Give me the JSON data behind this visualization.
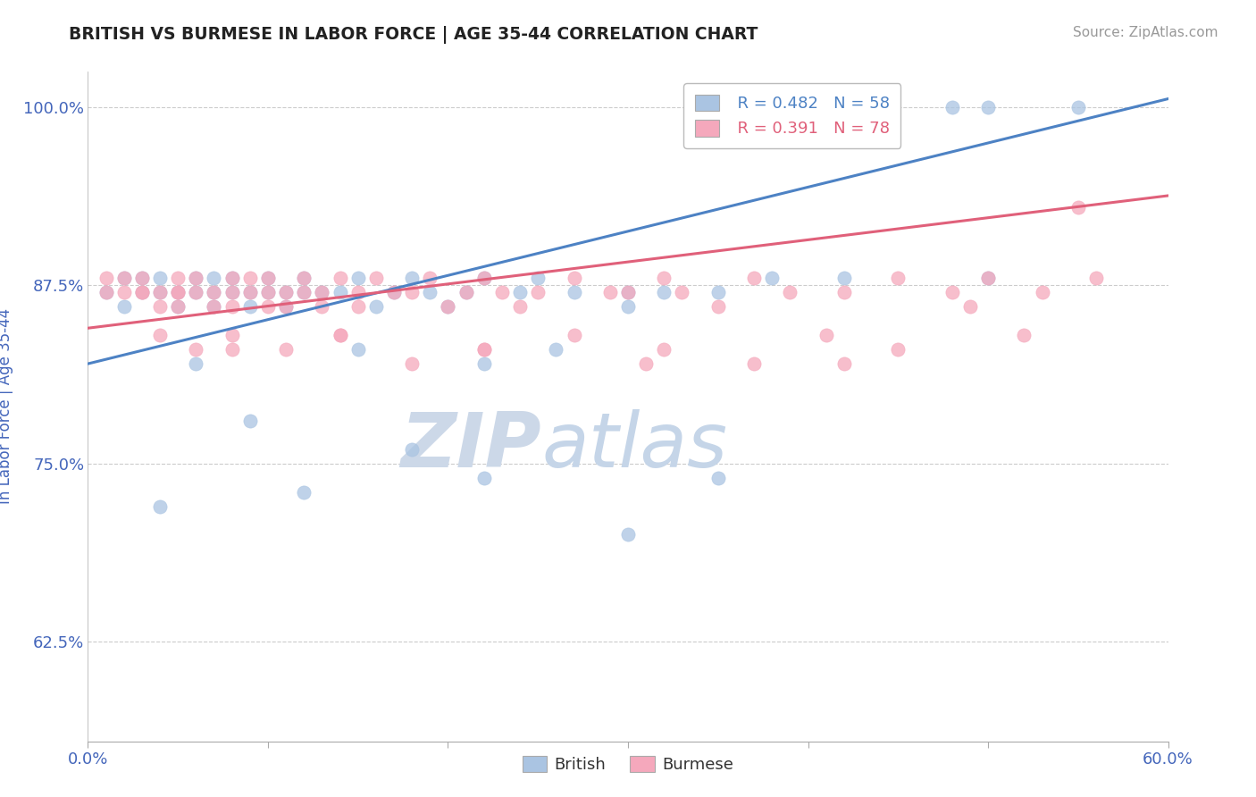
{
  "title": "BRITISH VS BURMESE IN LABOR FORCE | AGE 35-44 CORRELATION CHART",
  "source": "Source: ZipAtlas.com",
  "ylabel": "In Labor Force | Age 35-44",
  "xlim": [
    0.0,
    0.6
  ],
  "ylim": [
    0.555,
    1.025
  ],
  "yticks": [
    0.625,
    0.75,
    0.875,
    1.0
  ],
  "yticklabels": [
    "62.5%",
    "75.0%",
    "87.5%",
    "100.0%"
  ],
  "british_color": "#aac4e2",
  "burmese_color": "#f5a8bc",
  "british_line_color": "#4d82c4",
  "burmese_line_color": "#e0607a",
  "british_R": 0.482,
  "british_N": 58,
  "burmese_R": 0.391,
  "burmese_N": 78,
  "watermark_zip": "ZIP",
  "watermark_atlas": "atlas",
  "watermark_color": "#ccd8e8",
  "background_color": "#ffffff",
  "grid_color": "#cccccc",
  "tick_color": "#4466bb",
  "title_color": "#222222",
  "brit_line_intercept": 0.82,
  "brit_line_slope": 0.31,
  "burm_line_intercept": 0.845,
  "burm_line_slope": 0.155,
  "british_x": [
    0.01,
    0.02,
    0.02,
    0.03,
    0.03,
    0.04,
    0.04,
    0.05,
    0.05,
    0.06,
    0.06,
    0.07,
    0.07,
    0.07,
    0.08,
    0.08,
    0.09,
    0.09,
    0.1,
    0.1,
    0.11,
    0.11,
    0.12,
    0.12,
    0.13,
    0.14,
    0.15,
    0.16,
    0.17,
    0.18,
    0.19,
    0.2,
    0.21,
    0.22,
    0.24,
    0.25,
    0.27,
    0.3,
    0.32,
    0.35,
    0.38,
    0.42,
    0.48,
    0.5,
    0.5,
    0.55,
    0.04,
    0.06,
    0.09,
    0.12,
    0.15,
    0.18,
    0.22,
    0.26,
    0.3,
    0.35,
    0.22,
    0.3
  ],
  "british_y": [
    0.87,
    0.86,
    0.88,
    0.87,
    0.88,
    0.87,
    0.88,
    0.87,
    0.86,
    0.87,
    0.88,
    0.87,
    0.86,
    0.88,
    0.87,
    0.88,
    0.87,
    0.86,
    0.87,
    0.88,
    0.87,
    0.86,
    0.87,
    0.88,
    0.87,
    0.87,
    0.88,
    0.86,
    0.87,
    0.88,
    0.87,
    0.86,
    0.87,
    0.88,
    0.87,
    0.88,
    0.87,
    0.87,
    0.87,
    0.87,
    0.88,
    0.88,
    1.0,
    1.0,
    0.88,
    1.0,
    0.72,
    0.82,
    0.78,
    0.73,
    0.83,
    0.76,
    0.74,
    0.83,
    0.7,
    0.74,
    0.82,
    0.86
  ],
  "burmese_x": [
    0.01,
    0.01,
    0.02,
    0.02,
    0.03,
    0.03,
    0.04,
    0.04,
    0.05,
    0.05,
    0.05,
    0.06,
    0.06,
    0.07,
    0.07,
    0.08,
    0.08,
    0.08,
    0.09,
    0.09,
    0.1,
    0.1,
    0.1,
    0.11,
    0.11,
    0.12,
    0.12,
    0.13,
    0.13,
    0.14,
    0.15,
    0.15,
    0.16,
    0.17,
    0.18,
    0.19,
    0.2,
    0.21,
    0.22,
    0.23,
    0.24,
    0.25,
    0.27,
    0.29,
    0.3,
    0.32,
    0.33,
    0.35,
    0.37,
    0.39,
    0.42,
    0.45,
    0.48,
    0.5,
    0.53,
    0.56,
    0.04,
    0.06,
    0.08,
    0.11,
    0.14,
    0.18,
    0.22,
    0.27,
    0.32,
    0.37,
    0.41,
    0.45,
    0.49,
    0.52,
    0.55,
    0.42,
    0.31,
    0.22,
    0.14,
    0.08,
    0.05,
    0.03
  ],
  "burmese_y": [
    0.87,
    0.88,
    0.87,
    0.88,
    0.87,
    0.88,
    0.86,
    0.87,
    0.87,
    0.86,
    0.88,
    0.87,
    0.88,
    0.87,
    0.86,
    0.87,
    0.88,
    0.86,
    0.87,
    0.88,
    0.87,
    0.86,
    0.88,
    0.87,
    0.86,
    0.87,
    0.88,
    0.87,
    0.86,
    0.88,
    0.87,
    0.86,
    0.88,
    0.87,
    0.87,
    0.88,
    0.86,
    0.87,
    0.88,
    0.87,
    0.86,
    0.87,
    0.88,
    0.87,
    0.87,
    0.88,
    0.87,
    0.86,
    0.88,
    0.87,
    0.87,
    0.88,
    0.87,
    0.88,
    0.87,
    0.88,
    0.84,
    0.83,
    0.84,
    0.83,
    0.84,
    0.82,
    0.83,
    0.84,
    0.83,
    0.82,
    0.84,
    0.83,
    0.86,
    0.84,
    0.93,
    0.82,
    0.82,
    0.83,
    0.84,
    0.83,
    0.87,
    0.87
  ]
}
